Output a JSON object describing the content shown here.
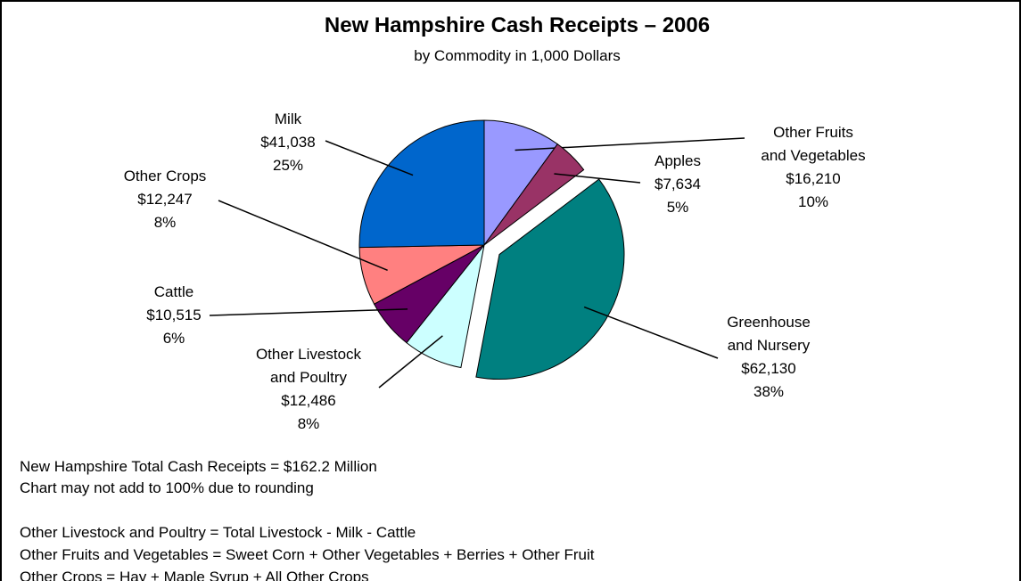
{
  "chart_data": {
    "type": "pie",
    "title": "New Hampshire Cash Receipts – 2006",
    "subtitle": "by Commodity in 1,000 Dollars",
    "categories": [
      [
        "Other Fruits",
        "and Vegetables"
      ],
      [
        "Apples"
      ],
      [
        "Greenhouse",
        "and Nursery"
      ],
      [
        "Other Livestock",
        "and Poultry"
      ],
      [
        "Cattle"
      ],
      [
        "Other Crops"
      ],
      [
        "Milk"
      ]
    ],
    "values": [
      16210,
      7634,
      62130,
      12486,
      10515,
      12247,
      41038
    ],
    "value_labels": [
      "$16,210",
      "$7,634",
      "$62,130",
      "$12,486",
      "$10,515",
      "$12,247",
      "$41,038"
    ],
    "percent_labels": [
      "10%",
      "5%",
      "38%",
      "8%",
      "6%",
      "8%",
      "25%"
    ],
    "colors": [
      "#9999ff",
      "#993366",
      "#008080",
      "#ccffff",
      "#660066",
      "#ff8080",
      "#0066cc"
    ],
    "exploded_index": 2,
    "notes": [
      "New Hampshire Total Cash Receipts = $162.2 Million",
      "Chart may not add to 100% due to rounding",
      "Other Livestock and Poultry = Total Livestock - Milk - Cattle",
      "Other Fruits and Vegetables = Sweet Corn + Other Vegetables + Berries + Other Fruit",
      "Other Crops = Hay + Maple Syrup + All Other Crops"
    ]
  }
}
